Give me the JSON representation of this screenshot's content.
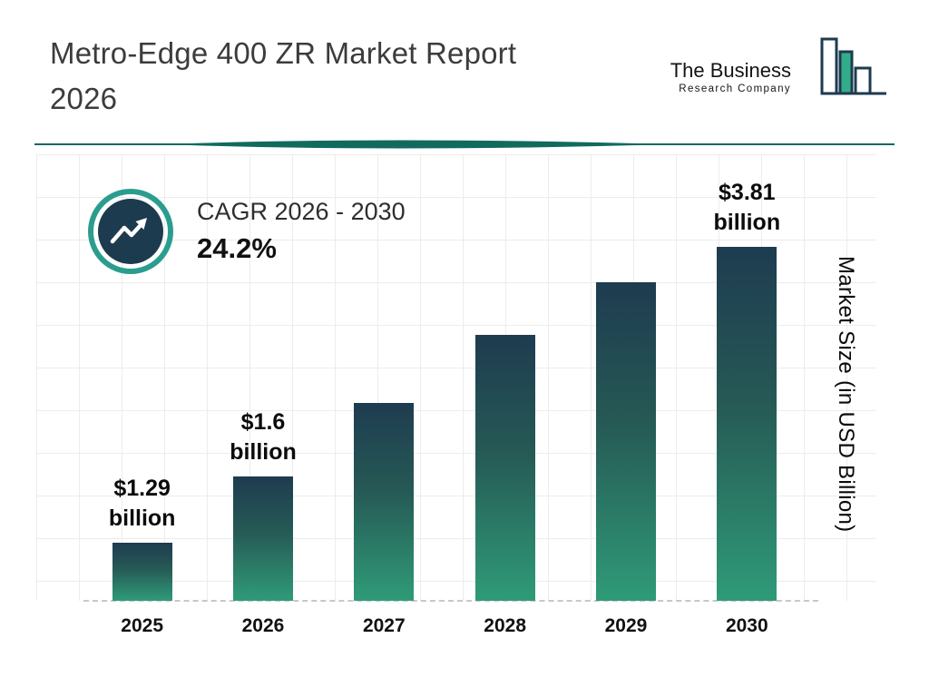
{
  "header": {
    "title": "Metro-Edge 400 ZR Market Report 2026",
    "logo": {
      "line1": "The Business",
      "line2": "Research Company"
    }
  },
  "cagr": {
    "label": "CAGR 2026 - 2030",
    "value": "24.2%"
  },
  "chart_data": {
    "type": "bar",
    "title": "Metro-Edge 400 ZR Market Report 2026",
    "categories": [
      "2025",
      "2026",
      "2027",
      "2028",
      "2029",
      "2030"
    ],
    "values": [
      1.29,
      1.6,
      1.99,
      2.47,
      3.07,
      3.81
    ],
    "data_labels": [
      "$1.29 billion",
      "$1.6 billion",
      null,
      null,
      null,
      "$3.81 billion"
    ],
    "xlabel": "",
    "ylabel": "Market Size (in USD Billion)",
    "ylim": [
      0,
      3.81
    ],
    "unit": "USD Billion",
    "grid": true,
    "legend": false,
    "cagr_percent": 24.2,
    "cagr_period": "2026 - 2030",
    "bar_height_fractions": [
      0.165,
      0.35,
      0.56,
      0.75,
      0.9,
      1.0
    ]
  },
  "colors": {
    "bar_top": "#1e3c50",
    "bar_bottom": "#2f9b78",
    "accent_teal": "#2a9d8f",
    "navy": "#1d3b4f",
    "divider": "#116a5e",
    "grid": "#ececec"
  }
}
